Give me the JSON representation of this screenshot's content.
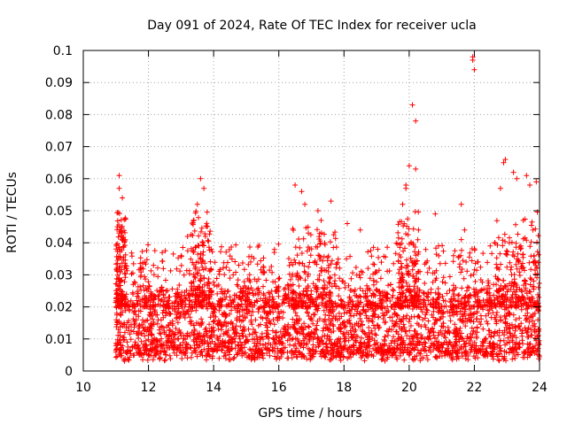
{
  "chart_data": {
    "type": "scatter",
    "title": "Day 091 of 2024, Rate Of TEC Index for receiver ucla",
    "xlabel": "GPS time / hours",
    "ylabel": "ROTI / TECUs",
    "xlim": [
      10,
      24
    ],
    "ylim": [
      0,
      0.1
    ],
    "xticks": [
      10,
      12,
      14,
      16,
      18,
      20,
      22,
      24
    ],
    "xtick_labels": [
      "10",
      "12",
      "14",
      "16",
      "18",
      "20",
      "22",
      "24"
    ],
    "yticks": [
      0,
      0.01,
      0.02,
      0.03,
      0.04,
      0.05,
      0.06,
      0.07,
      0.08,
      0.09,
      0.1
    ],
    "ytick_labels": [
      "0",
      "0.01",
      "0.02",
      "0.03",
      "0.04",
      "0.05",
      "0.06",
      "0.07",
      "0.08",
      "0.09",
      "0.1"
    ],
    "grid": true,
    "marker": "+",
    "color": "#ff0000",
    "series": [
      {
        "name": "ROTI",
        "x_range": [
          11.0,
          24.0
        ],
        "baseline_range": [
          0.005,
          0.025
        ],
        "notable_points": [
          {
            "x": 11.1,
            "y": 0.061
          },
          {
            "x": 11.1,
            "y": 0.057
          },
          {
            "x": 11.2,
            "y": 0.054
          },
          {
            "x": 11.05,
            "y": 0.045
          },
          {
            "x": 11.1,
            "y": 0.043
          },
          {
            "x": 13.6,
            "y": 0.06
          },
          {
            "x": 13.7,
            "y": 0.057
          },
          {
            "x": 13.5,
            "y": 0.052
          },
          {
            "x": 13.2,
            "y": 0.042
          },
          {
            "x": 13.0,
            "y": 0.036
          },
          {
            "x": 16.5,
            "y": 0.058
          },
          {
            "x": 16.7,
            "y": 0.056
          },
          {
            "x": 16.8,
            "y": 0.052
          },
          {
            "x": 17.2,
            "y": 0.05
          },
          {
            "x": 17.3,
            "y": 0.047
          },
          {
            "x": 17.6,
            "y": 0.053
          },
          {
            "x": 18.1,
            "y": 0.046
          },
          {
            "x": 18.5,
            "y": 0.044
          },
          {
            "x": 19.9,
            "y": 0.058
          },
          {
            "x": 19.9,
            "y": 0.057
          },
          {
            "x": 19.8,
            "y": 0.052
          },
          {
            "x": 20.0,
            "y": 0.064
          },
          {
            "x": 20.2,
            "y": 0.063
          },
          {
            "x": 20.1,
            "y": 0.083
          },
          {
            "x": 20.2,
            "y": 0.078
          },
          {
            "x": 20.8,
            "y": 0.049
          },
          {
            "x": 20.9,
            "y": 0.039
          },
          {
            "x": 21.6,
            "y": 0.052
          },
          {
            "x": 21.7,
            "y": 0.044
          },
          {
            "x": 21.6,
            "y": 0.041
          },
          {
            "x": 21.95,
            "y": 0.098
          },
          {
            "x": 21.95,
            "y": 0.097
          },
          {
            "x": 22.0,
            "y": 0.094
          },
          {
            "x": 22.1,
            "y": 0.034
          },
          {
            "x": 22.8,
            "y": 0.057
          },
          {
            "x": 22.9,
            "y": 0.065
          },
          {
            "x": 22.95,
            "y": 0.066
          },
          {
            "x": 23.2,
            "y": 0.062
          },
          {
            "x": 23.3,
            "y": 0.06
          },
          {
            "x": 23.6,
            "y": 0.061
          },
          {
            "x": 23.7,
            "y": 0.058
          },
          {
            "x": 23.9,
            "y": 0.059
          },
          {
            "x": 23.5,
            "y": 0.047
          },
          {
            "x": 23.8,
            "y": 0.044
          }
        ],
        "elevated_periods": [
          {
            "x_range": [
              11.0,
              11.3
            ],
            "y_max": 0.05
          },
          {
            "x_range": [
              13.3,
              13.9
            ],
            "y_max": 0.05
          },
          {
            "x_range": [
              16.3,
              17.8
            ],
            "y_max": 0.045
          },
          {
            "x_range": [
              19.6,
              20.3
            ],
            "y_max": 0.05
          },
          {
            "x_range": [
              22.6,
              24.0
            ],
            "y_max": 0.05
          }
        ]
      }
    ]
  }
}
